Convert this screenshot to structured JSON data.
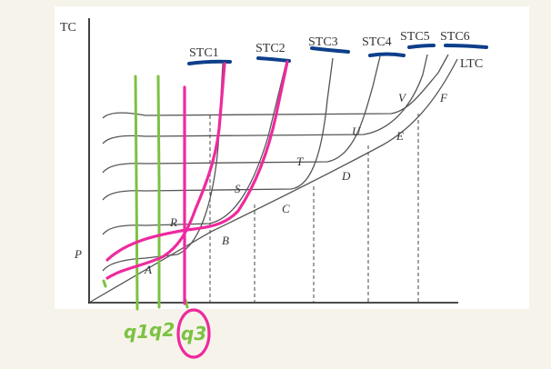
{
  "axes": {
    "y_label": "TC"
  },
  "curves": {
    "stc": [
      "STC1",
      "STC2",
      "STC3",
      "STC4",
      "STC5",
      "STC6"
    ],
    "ltc": "LTC"
  },
  "points": [
    "P",
    "A",
    "R",
    "B",
    "S",
    "C",
    "T",
    "D",
    "U",
    "E",
    "V",
    "F"
  ],
  "annotations": {
    "quantities": [
      "q1",
      "q2",
      "q3"
    ],
    "highlighted_quantity": "q3"
  },
  "colors": {
    "curve": "#555555",
    "pink": "#ee2a9e",
    "green": "#7cc242",
    "blue": "#0d3f8a"
  }
}
